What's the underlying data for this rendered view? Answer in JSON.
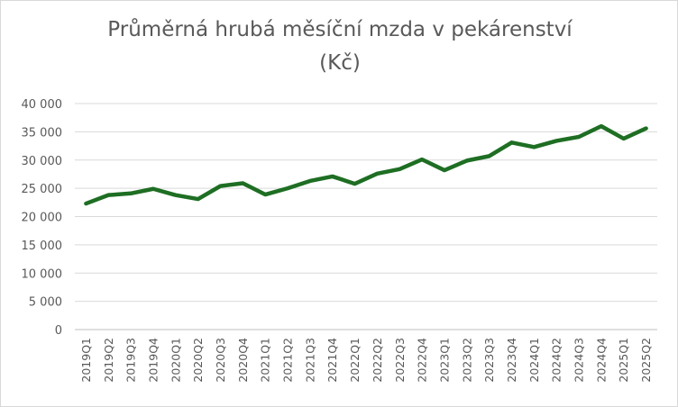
{
  "chart_data": {
    "type": "line",
    "title_line1": "Průměrná hrubá měsíční mzda v pekárenství",
    "title_line2": "(Kč)",
    "xlabel": "",
    "ylabel": "",
    "ylim": [
      0,
      40000
    ],
    "y_ticks": [
      0,
      5000,
      10000,
      15000,
      20000,
      25000,
      30000,
      35000,
      40000
    ],
    "y_tick_labels": [
      "0",
      "5 000",
      "10 000",
      "15 000",
      "20 000",
      "25 000",
      "30 000",
      "35 000",
      "40 000"
    ],
    "grid": true,
    "legend": "none",
    "series_color": "#1e6e23",
    "categories": [
      "2019Q1",
      "2019Q2",
      "2019Q3",
      "2019Q4",
      "2020Q1",
      "2020Q2",
      "2020Q3",
      "2020Q4",
      "2021Q1",
      "2021Q2",
      "2021Q3",
      "2021Q4",
      "2022Q1",
      "2022Q2",
      "2022Q3",
      "2022Q4",
      "2023Q1",
      "2023Q2",
      "2023Q3",
      "2023Q4",
      "2024Q1",
      "2024Q2",
      "2024Q3",
      "2024Q4",
      "2025Q1",
      "2025Q2"
    ],
    "values": [
      22300,
      23800,
      24100,
      24900,
      23800,
      23100,
      25400,
      25900,
      23900,
      25000,
      26300,
      27100,
      25800,
      27600,
      28400,
      30100,
      28200,
      29900,
      30700,
      33100,
      32300,
      33400,
      34100,
      36000,
      33800,
      35600
    ]
  }
}
